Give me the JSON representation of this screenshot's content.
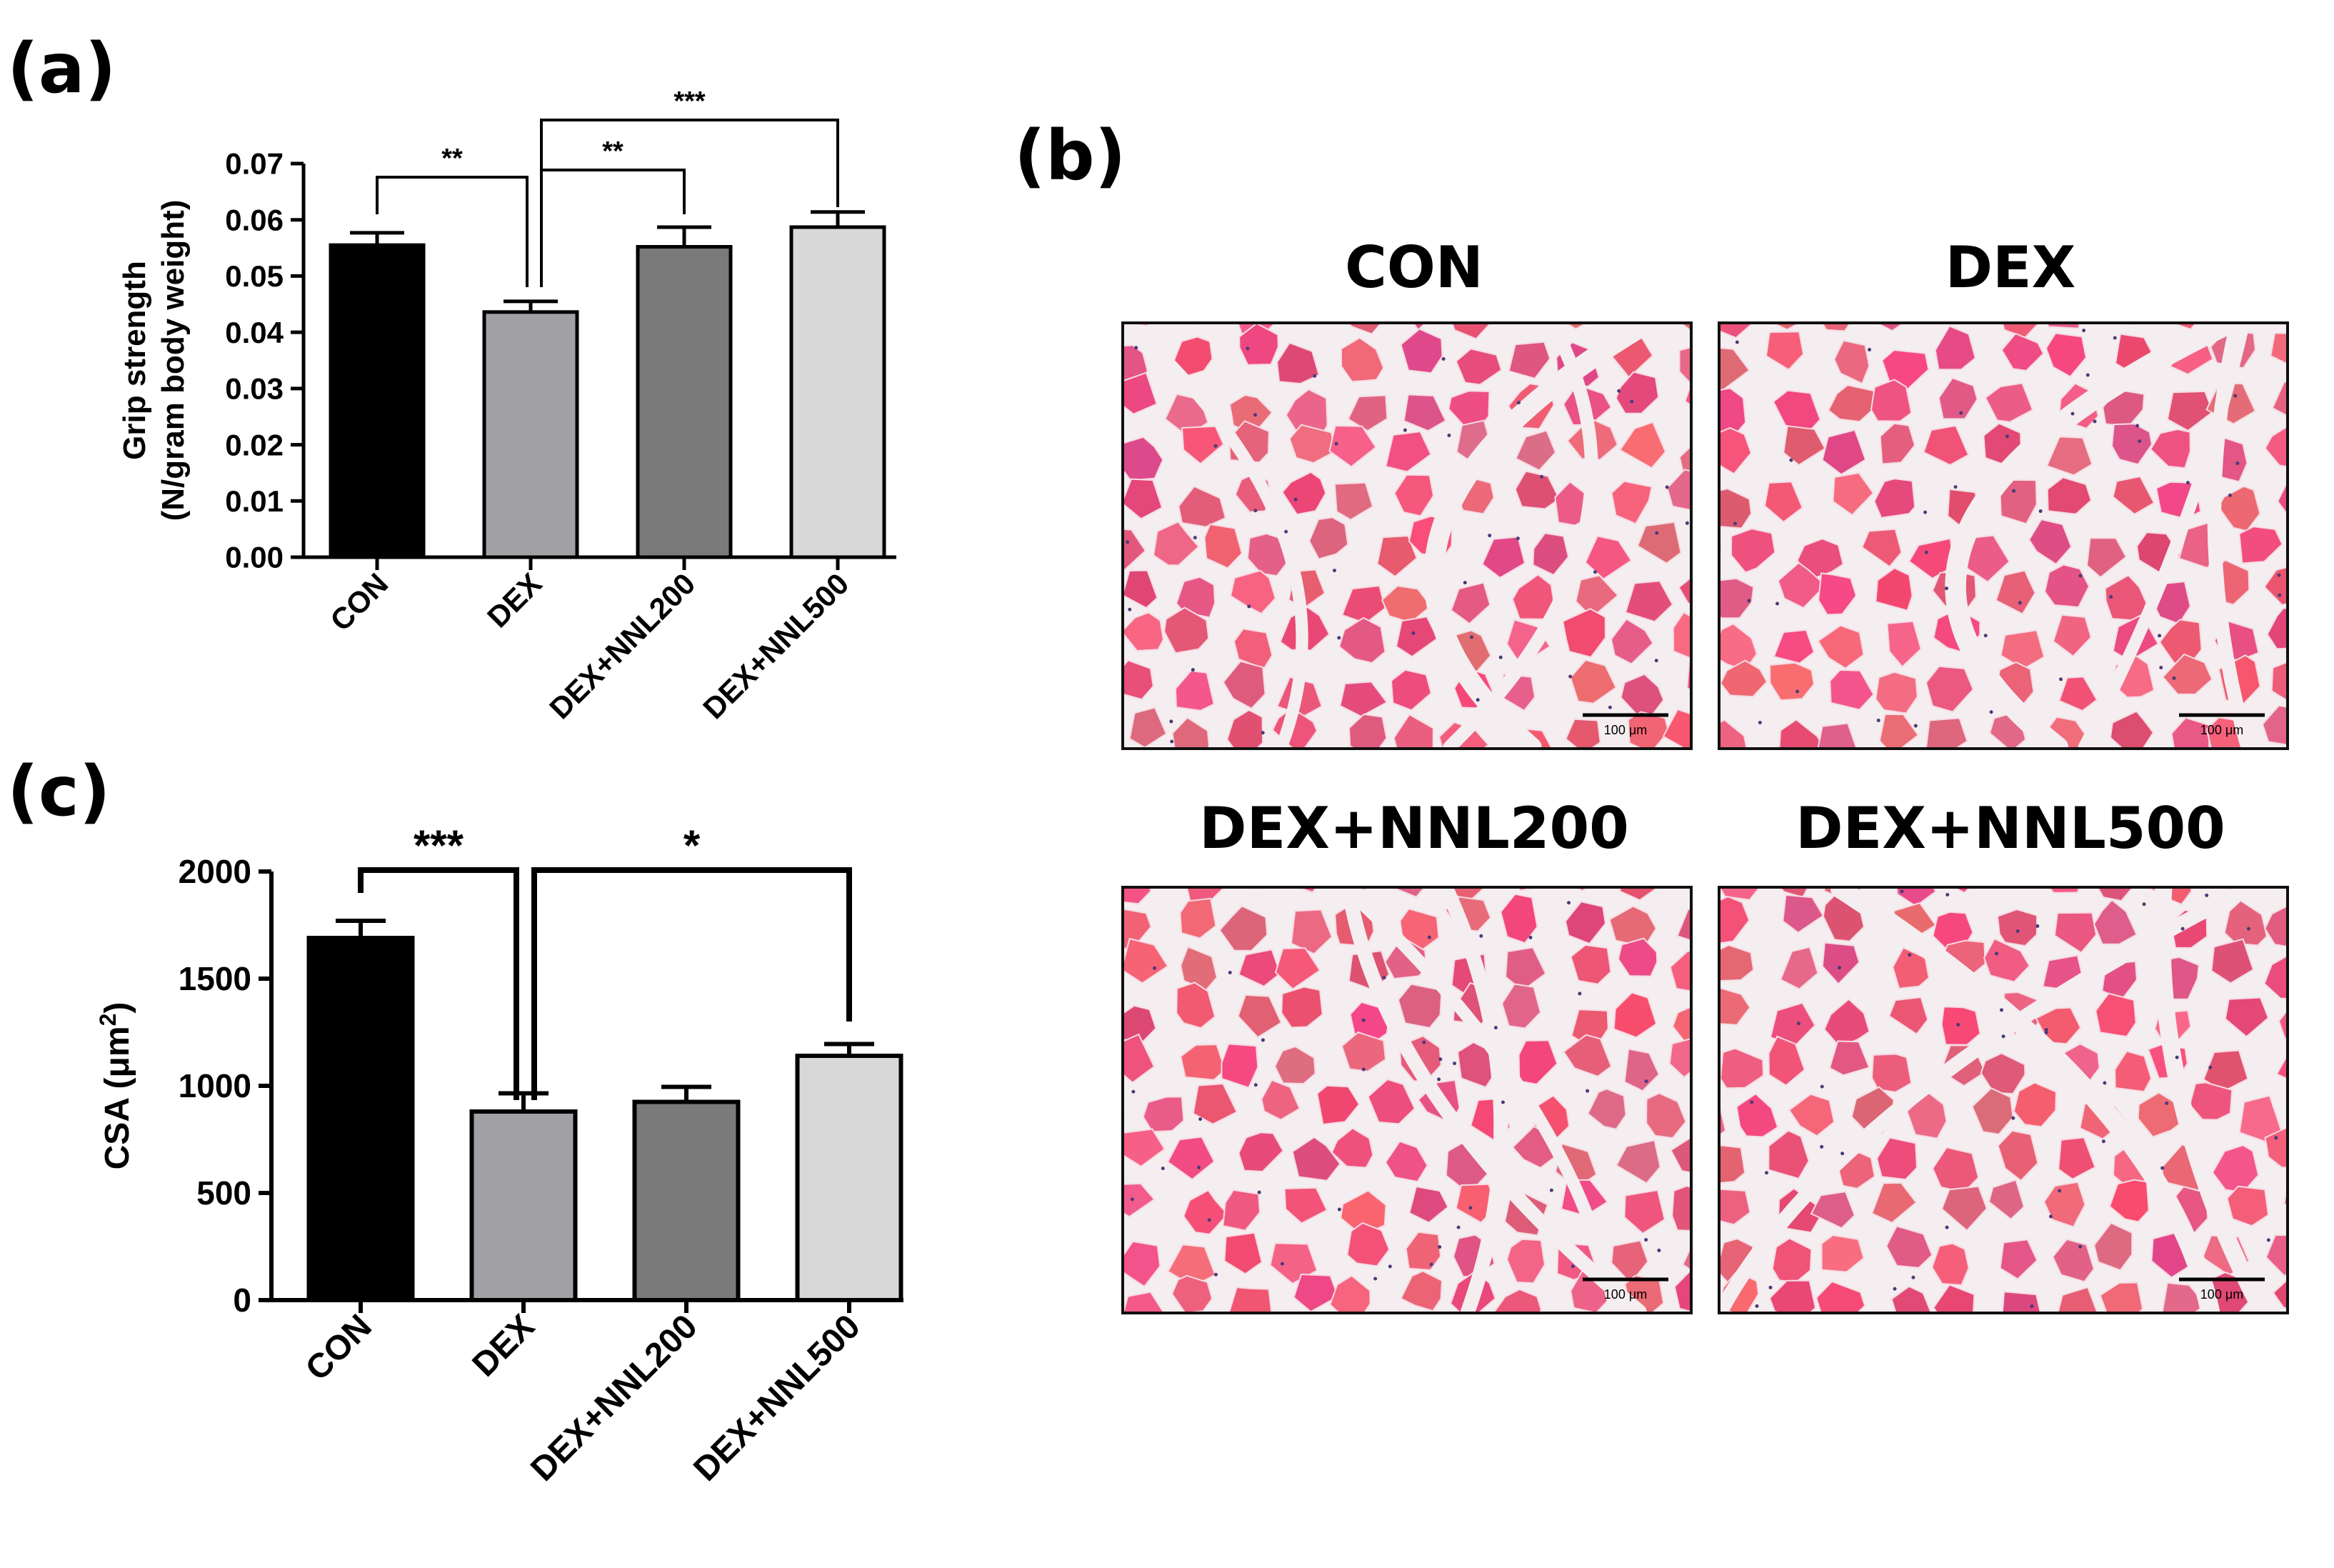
{
  "panels": {
    "a_label": "(a)",
    "b_label": "(b)",
    "c_label": "(c)"
  },
  "colors": {
    "CON": "#000000",
    "DEX": "#a0a0a5",
    "DEX+NNL200": "#7a7a7a",
    "DEX+NNL500": "#d8d8d8",
    "tissue_fiber": "#e2557f",
    "tissue_background": "#f4eef0"
  },
  "chart_data": [
    {
      "panel": "(a)",
      "type": "bar",
      "categories": [
        "CON",
        "DEX",
        "DEX+NNL200",
        "DEX+NNL500"
      ],
      "values": [
        0.0555,
        0.0436,
        0.0552,
        0.0587
      ],
      "errors": [
        0.0022,
        0.0019,
        0.0035,
        0.0027
      ],
      "ylabel_lines": [
        "Grip strength",
        "(N/gram body weight)"
      ],
      "ylim": [
        0,
        0.07
      ],
      "yticks": [
        0.0,
        0.01,
        0.02,
        0.03,
        0.04,
        0.05,
        0.06,
        0.07
      ],
      "ytick_labels": [
        "0.00",
        "0.01",
        "0.02",
        "0.03",
        "0.04",
        "0.05",
        "0.06",
        "0.07"
      ],
      "significance": [
        {
          "from": 0,
          "to": 1,
          "label": "**"
        },
        {
          "from": 1,
          "to": 2,
          "label": "**"
        },
        {
          "from": 1,
          "to": 3,
          "label": "***"
        }
      ],
      "grid": false
    },
    {
      "panel": "(c)",
      "type": "bar",
      "categories": [
        "CON",
        "DEX",
        "DEX+NNL200",
        "DEX+NNL500"
      ],
      "values": [
        1690,
        880,
        925,
        1140
      ],
      "errors": [
        80,
        85,
        70,
        55
      ],
      "ylabel": "CSA (μm",
      "ylabel_sup": "2",
      "ylabel_end": ")",
      "ylim": [
        0,
        2000
      ],
      "yticks": [
        0,
        500,
        1000,
        1500,
        2000
      ],
      "ytick_labels": [
        "0",
        "500",
        "1000",
        "1500",
        "2000"
      ],
      "significance": [
        {
          "from": 0,
          "to": 1,
          "label": "***"
        },
        {
          "from": 1,
          "to": 3,
          "label": "*"
        }
      ],
      "grid": false
    }
  ],
  "histology": {
    "images": [
      {
        "title": "CON",
        "scale_bar": "100 μm"
      },
      {
        "title": "DEX",
        "scale_bar": "100 μm"
      },
      {
        "title": "DEX+NNL200",
        "scale_bar": "100 μm"
      },
      {
        "title": "DEX+NNL500",
        "scale_bar": "100 μm"
      }
    ]
  }
}
